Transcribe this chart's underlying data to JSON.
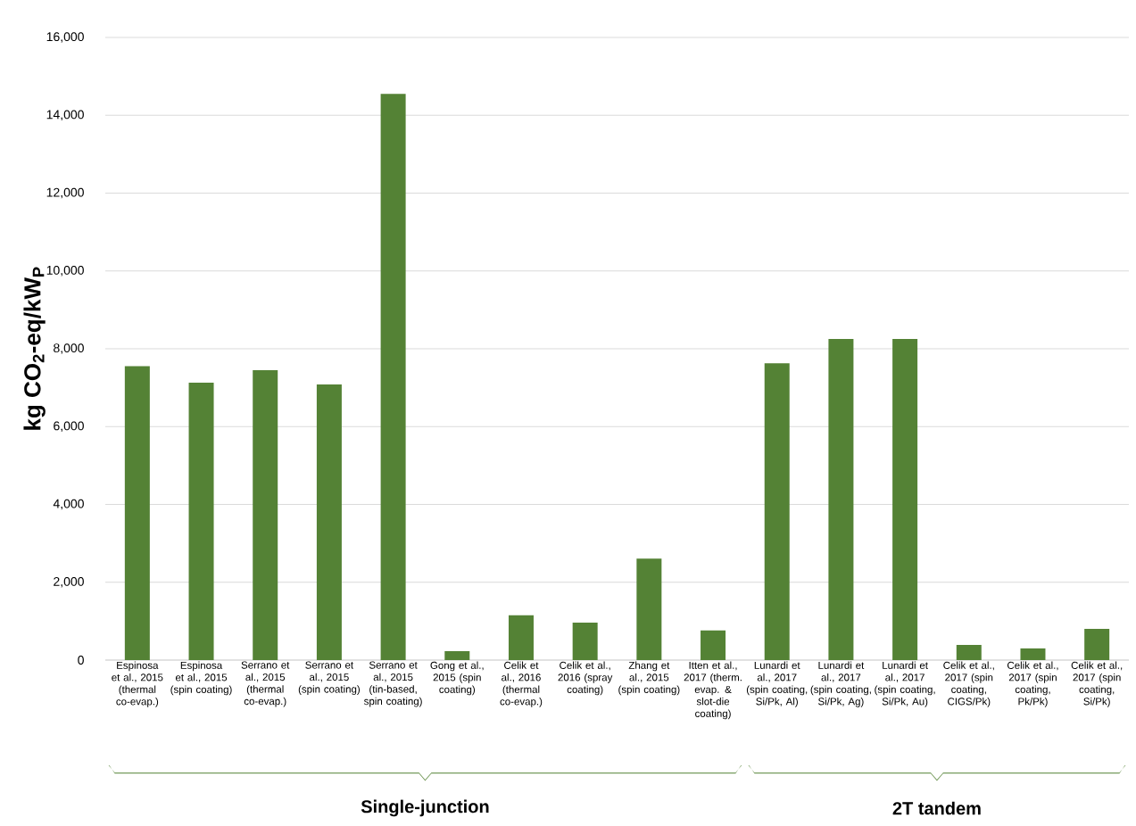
{
  "chart_data": {
    "type": "bar",
    "ylabel": "kg CO$_{2}$-eq/kW$_{P}$",
    "categories": [
      "Espinosa et al., 2015 (thermal co-evap.)",
      "Espinosa et al., 2015 (spin coating)",
      "Serrano et al., 2015 (thermal co-evap.)",
      "Serrano et al., 2015 (spin coating)",
      "Serrano et al., 2015 (tin-based, spin coating)",
      "Gong et al., 2015 (spin coating)",
      "Celik et al., 2016 (thermal co-evap.)",
      "Celik et al., 2016 (spray coating)",
      "Zhang et al., 2015 (spin coating)",
      "Itten et al., 2017 (therm. evap. & slot-die coating)",
      "Lunardi et al., 2017 (spin coating, Si/Pk, Al)",
      "Lunardi et al., 2017 (spin coating, Si/Pk, Ag)",
      "Lunardi et al., 2017 (spin coating, Si/Pk, Au)",
      "Celik et al., 2017 (spin coating, CIGS/Pk)",
      "Celik et al., 2017 (spin coating, Pk/Pk)",
      "Celik et al., 2017 (spin coating, Si/Pk)"
    ],
    "values": [
      7550,
      7130,
      7450,
      7080,
      14550,
      230,
      1150,
      960,
      2610,
      760,
      7630,
      8250,
      8250,
      390,
      300,
      800
    ],
    "color": "#548235",
    "ylim": [
      0,
      16000
    ],
    "yticks": [
      {
        "value": 0,
        "label": "0"
      },
      {
        "value": 2000,
        "label": "2,000"
      },
      {
        "value": 4000,
        "label": "4,000"
      },
      {
        "value": 6000,
        "label": "6,000"
      },
      {
        "value": 8000,
        "label": "8,000"
      },
      {
        "value": 10000,
        "label": "10,000"
      },
      {
        "value": 12000,
        "label": "12,000"
      },
      {
        "value": 14000,
        "label": "14,000"
      },
      {
        "value": 16000,
        "label": "16,000"
      }
    ],
    "grid": "y",
    "annotations": [
      "Single-junction",
      "2T tandem"
    ]
  }
}
